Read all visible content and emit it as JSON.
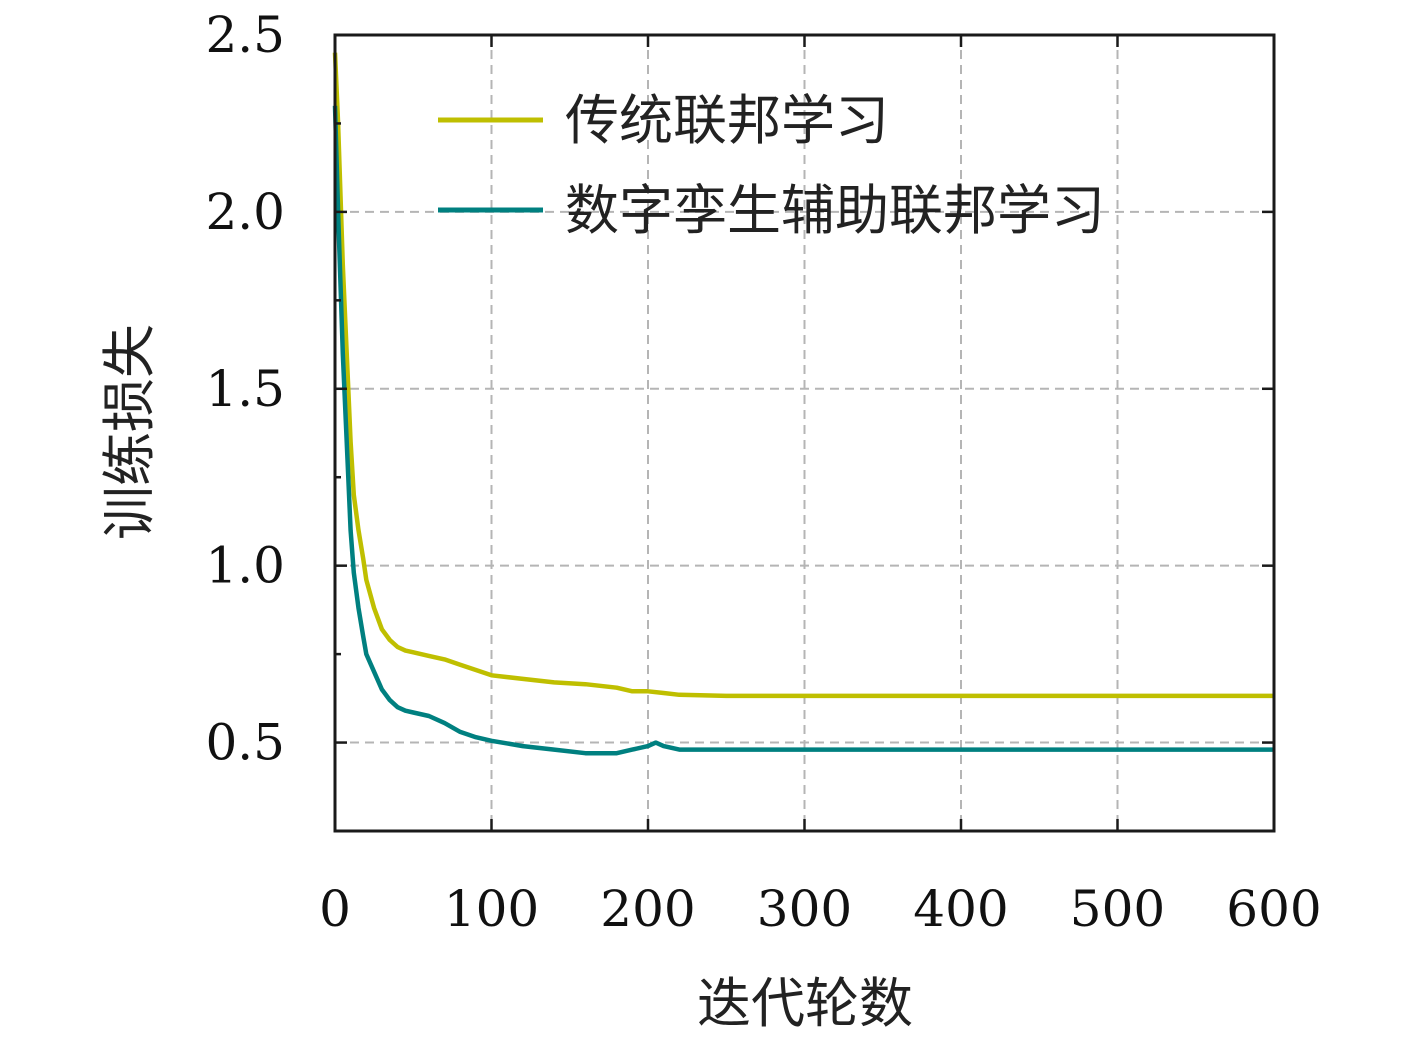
{
  "chart_data": {
    "type": "line",
    "xlabel": "迭代轮数",
    "ylabel": "训练损失",
    "xlim": [
      0,
      600
    ],
    "ylim": [
      0.25,
      2.5
    ],
    "x_ticks": [
      0,
      100,
      200,
      300,
      400,
      500,
      600
    ],
    "x_tick_labels": [
      "0",
      "100",
      "200",
      "300",
      "400",
      "500",
      "600"
    ],
    "y_ticks": [
      0.5,
      1.0,
      1.5,
      2.0,
      2.5
    ],
    "y_tick_labels": [
      "0.5",
      "1.0",
      "1.5",
      "2.0",
      "2.5"
    ],
    "grid": true,
    "legend_position": "top-right",
    "series": [
      {
        "name": "传统联邦学习",
        "color": "#bfbf00",
        "x": [
          0,
          2,
          5,
          8,
          10,
          12,
          15,
          18,
          20,
          25,
          30,
          35,
          40,
          45,
          50,
          60,
          70,
          80,
          90,
          100,
          120,
          140,
          160,
          180,
          190,
          200,
          210,
          220,
          250,
          300,
          400,
          500,
          600
        ],
        "y": [
          2.45,
          2.25,
          1.85,
          1.55,
          1.35,
          1.2,
          1.1,
          1.02,
          0.96,
          0.88,
          0.82,
          0.79,
          0.77,
          0.76,
          0.755,
          0.745,
          0.735,
          0.72,
          0.705,
          0.69,
          0.68,
          0.67,
          0.665,
          0.655,
          0.645,
          0.645,
          0.64,
          0.635,
          0.632,
          0.632,
          0.632,
          0.632,
          0.632
        ]
      },
      {
        "name": "数字孪生辅助联邦学习",
        "color": "#008080",
        "x": [
          0,
          2,
          5,
          8,
          10,
          12,
          15,
          18,
          20,
          25,
          30,
          35,
          40,
          45,
          50,
          60,
          70,
          80,
          90,
          100,
          120,
          140,
          160,
          180,
          190,
          200,
          205,
          210,
          220,
          230,
          300,
          400,
          500,
          600
        ],
        "y": [
          2.3,
          2.0,
          1.6,
          1.3,
          1.1,
          0.98,
          0.88,
          0.8,
          0.75,
          0.7,
          0.65,
          0.62,
          0.6,
          0.59,
          0.585,
          0.575,
          0.555,
          0.53,
          0.515,
          0.505,
          0.49,
          0.48,
          0.47,
          0.47,
          0.48,
          0.49,
          0.5,
          0.49,
          0.48,
          0.48,
          0.48,
          0.48,
          0.48,
          0.48
        ]
      }
    ]
  }
}
